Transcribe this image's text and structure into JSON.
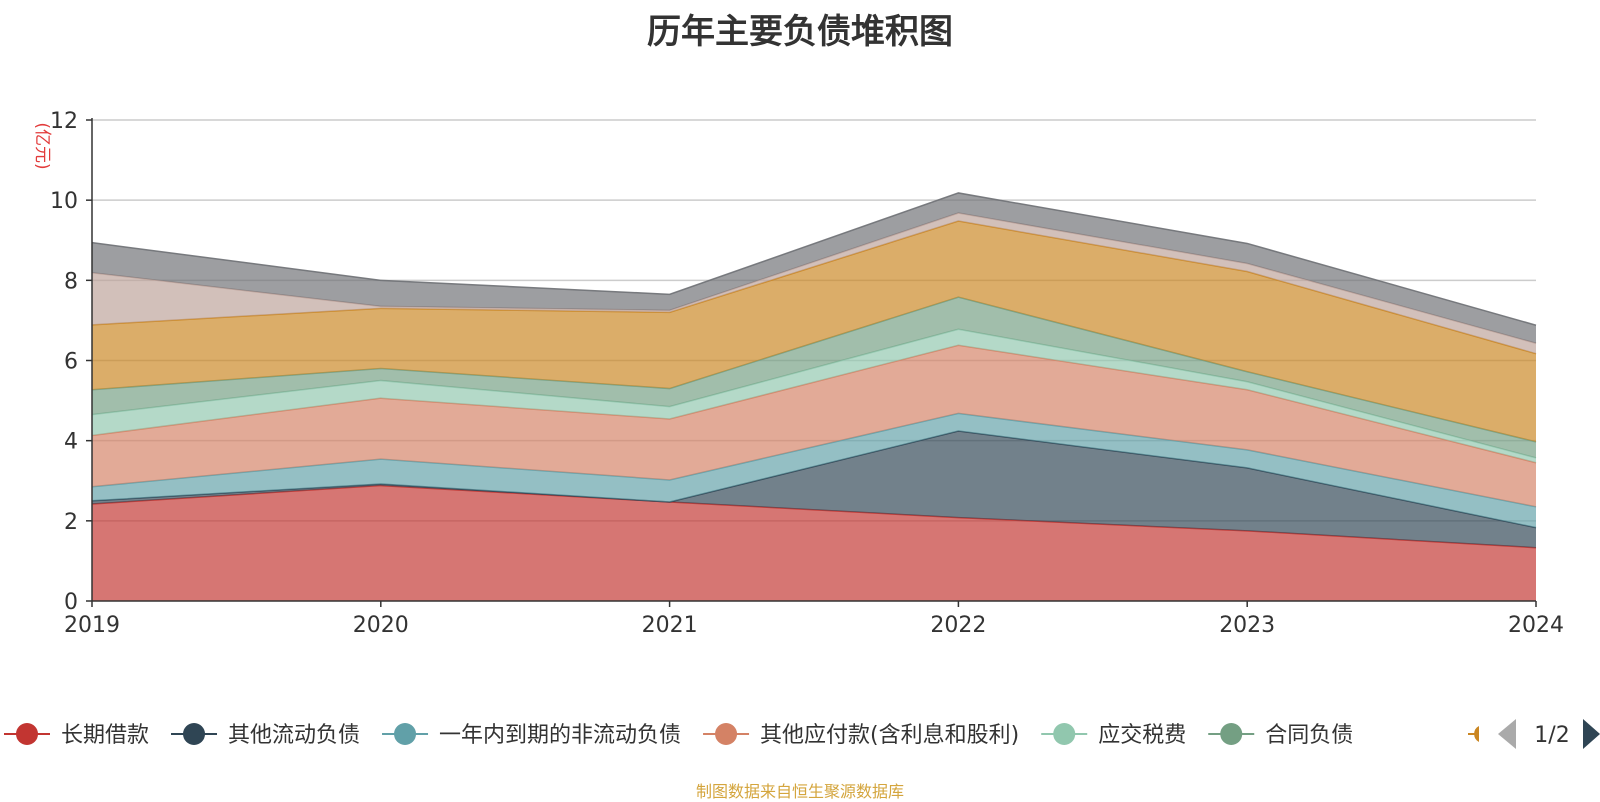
{
  "chart_data": {
    "type": "area",
    "stacked": true,
    "title": "历年主要负债堆积图",
    "ylabel": "(亿元)",
    "xlabel": "",
    "categories": [
      "2019",
      "2020",
      "2021",
      "2022",
      "2023",
      "2024"
    ],
    "ylim": [
      0,
      12
    ],
    "yticks": [
      0,
      2,
      4,
      6,
      8,
      10,
      12
    ],
    "grid": true,
    "legend_position": "bottom",
    "series": [
      {
        "name": "长期借款",
        "color": "#c23531",
        "values": [
          2.42,
          2.88,
          2.47,
          2.08,
          1.75,
          1.33
        ]
      },
      {
        "name": "其他流动负债",
        "color": "#2f4554",
        "values": [
          0.08,
          0.04,
          0.0,
          2.16,
          1.57,
          0.5
        ]
      },
      {
        "name": "一年内到期的非流动负债",
        "color": "#61a0a8",
        "values": [
          0.35,
          0.62,
          0.55,
          0.44,
          0.45,
          0.52
        ]
      },
      {
        "name": "其他应付款(含利息和股利)",
        "color": "#d48265",
        "values": [
          1.28,
          1.52,
          1.52,
          1.7,
          1.5,
          1.1
        ]
      },
      {
        "name": "应交税费",
        "color": "#91c7ae",
        "values": [
          0.52,
          0.44,
          0.31,
          0.4,
          0.2,
          0.12
        ]
      },
      {
        "name": "合同负债",
        "color": "#749f83",
        "values": [
          0.62,
          0.3,
          0.45,
          0.8,
          0.25,
          0.4
        ]
      },
      {
        "name": "",
        "color": "#ca8622",
        "values": [
          1.62,
          1.5,
          1.9,
          1.9,
          2.5,
          2.2
        ]
      },
      {
        "name": "",
        "color": "#bda29a",
        "values": [
          1.3,
          0.05,
          0.05,
          0.2,
          0.2,
          0.26
        ]
      },
      {
        "name": "",
        "color": "#6e7074",
        "values": [
          0.75,
          0.65,
          0.4,
          0.5,
          0.5,
          0.45
        ]
      }
    ]
  },
  "legend": {
    "page": "1/2"
  },
  "source_note": "制图数据来自恒生聚源数据库"
}
